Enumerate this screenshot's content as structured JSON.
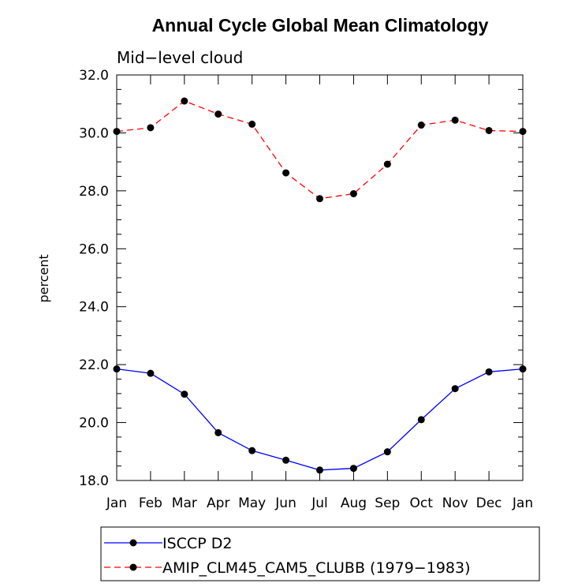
{
  "chart_data": {
    "type": "line",
    "title": "Annual Cycle Global Mean Climatology",
    "subtitle": "Mid−level cloud",
    "ylabel": "percent",
    "xlabel": "",
    "categories": [
      "Jan",
      "Feb",
      "Mar",
      "Apr",
      "May",
      "Jun",
      "Jul",
      "Aug",
      "Sep",
      "Oct",
      "Nov",
      "Dec",
      "Jan"
    ],
    "ylim": [
      18.0,
      32.0
    ],
    "yticks": [
      "18.0",
      "20.0",
      "22.0",
      "24.0",
      "26.0",
      "28.0",
      "30.0",
      "32.0"
    ],
    "grid": false,
    "legend_position": "bottom",
    "series": [
      {
        "name": "ISCCP D2",
        "color": "#0000ff",
        "line_style": "solid",
        "marker": "filled-circle",
        "values": [
          21.85,
          21.7,
          20.98,
          19.65,
          19.03,
          18.7,
          18.36,
          18.42,
          18.99,
          20.1,
          21.17,
          21.75,
          21.85
        ]
      },
      {
        "name": "AMIP_CLM45_CAM5_CLUBB (1979−1983)",
        "color": "#ff0000",
        "line_style": "dashed",
        "marker": "filled-circle",
        "values": [
          30.05,
          30.18,
          31.1,
          30.65,
          30.3,
          28.62,
          27.73,
          27.9,
          28.92,
          30.27,
          30.44,
          30.08,
          30.05
        ]
      }
    ]
  }
}
